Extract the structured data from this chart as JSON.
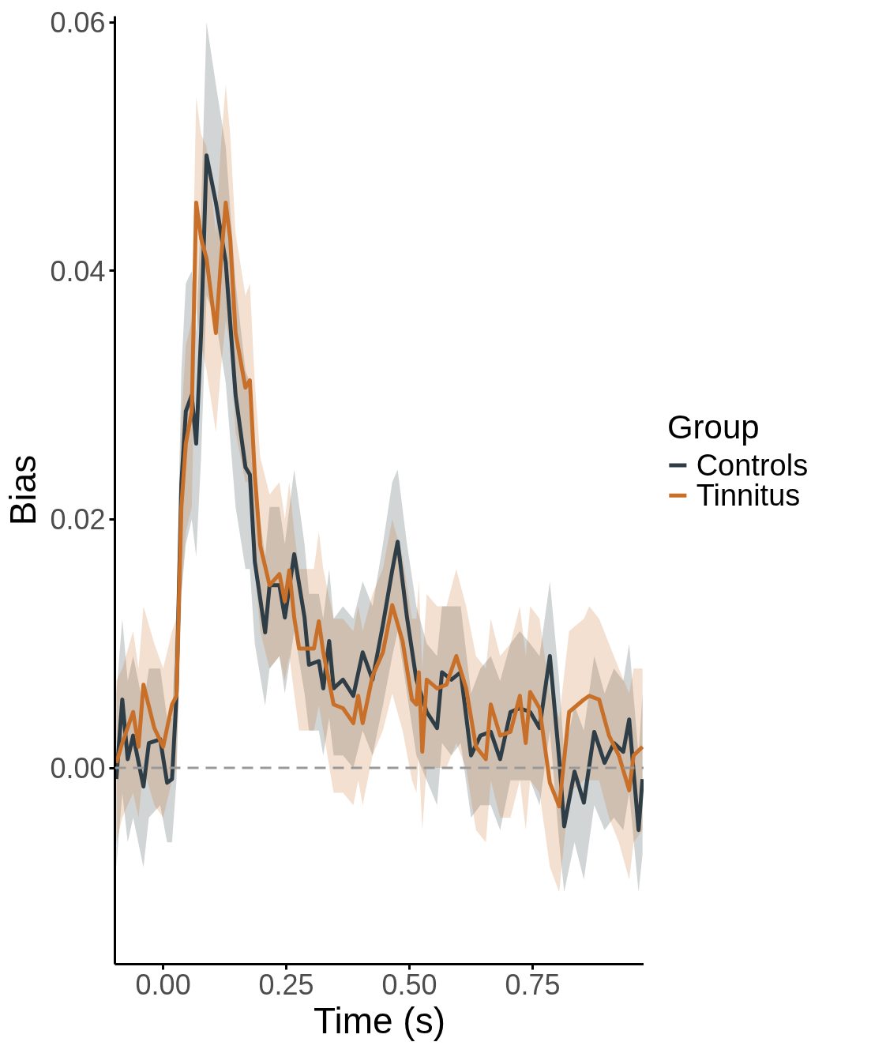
{
  "chart_data": {
    "type": "line",
    "xlabel": "Time (s)",
    "ylabel": "Bias",
    "legend_title": "Group",
    "legend": "right",
    "grid": false,
    "xlim": [
      -0.098,
      0.976
    ],
    "ylim": [
      -0.0158,
      0.0605
    ],
    "xticks": [
      {
        "value": 0,
        "label": "0.00"
      },
      {
        "value": 0.25,
        "label": "0.25"
      },
      {
        "value": 0.5,
        "label": "0.50"
      },
      {
        "value": 0.75,
        "label": "0.75"
      }
    ],
    "yticks": [
      {
        "value": 0,
        "label": "0.00"
      },
      {
        "value": 0.02,
        "label": "0.02"
      },
      {
        "value": 0.04,
        "label": "0.04"
      },
      {
        "value": 0.06,
        "label": "0.06"
      }
    ],
    "ref_lines": [
      {
        "axis": "y",
        "value": 0,
        "color": "#999999",
        "line_style": "dashed"
      }
    ],
    "series": [
      {
        "name": "Controls",
        "color": "#2f3e46",
        "x": [
          -0.095,
          -0.083,
          -0.072,
          -0.061,
          -0.04,
          -0.029,
          -0.006,
          0.008,
          0.018,
          0.027,
          0.037,
          0.046,
          0.058,
          0.067,
          0.077,
          0.088,
          0.107,
          0.127,
          0.147,
          0.167,
          0.176,
          0.186,
          0.207,
          0.216,
          0.236,
          0.247,
          0.266,
          0.287,
          0.296,
          0.316,
          0.325,
          0.337,
          0.346,
          0.365,
          0.386,
          0.405,
          0.425,
          0.446,
          0.465,
          0.476,
          0.495,
          0.514,
          0.535,
          0.556,
          0.566,
          0.585,
          0.604,
          0.625,
          0.644,
          0.665,
          0.684,
          0.705,
          0.724,
          0.745,
          0.764,
          0.785,
          0.804,
          0.814,
          0.835,
          0.854,
          0.875,
          0.896,
          0.915,
          0.934,
          0.946,
          0.965,
          0.973
        ],
        "values": [
          -0.0009,
          0.0055,
          0.0007,
          0.0026,
          -0.0015,
          0.002,
          0.0023,
          -0.0012,
          -0.0009,
          0.0058,
          0.0229,
          0.0287,
          0.03,
          0.0261,
          0.035,
          0.0493,
          0.0455,
          0.0407,
          0.03,
          0.0242,
          0.0236,
          0.0166,
          0.0109,
          0.0147,
          0.0147,
          0.0121,
          0.0172,
          0.0121,
          0.0083,
          0.0086,
          0.0064,
          0.0102,
          0.0064,
          0.0071,
          0.0058,
          0.0093,
          0.0071,
          0.0115,
          0.0159,
          0.0182,
          0.0121,
          0.0071,
          0.0045,
          0.0032,
          0.0077,
          0.0071,
          0.0077,
          0.001,
          0.0026,
          0.0029,
          0.0007,
          0.0045,
          0.0048,
          0.0045,
          0.0032,
          0.009,
          0.0007,
          -0.0047,
          -0.0003,
          -0.0028,
          0.0029,
          0.0004,
          0.002,
          0.0013,
          0.0039,
          -0.005,
          -0.0009
        ],
        "lower": [
          -0.008,
          -0.002,
          -0.006,
          -0.004,
          -0.008,
          -0.004,
          -0.003,
          -0.006,
          -0.006,
          -0.001,
          0.014,
          0.018,
          0.02,
          0.017,
          0.025,
          0.038,
          0.036,
          0.031,
          0.021,
          0.016,
          0.016,
          0.01,
          0.005,
          0.008,
          0.009,
          0.006,
          0.011,
          0.006,
          0.003,
          0.003,
          0.001,
          0.004,
          0.001,
          0.001,
          0.0,
          0.003,
          0.001,
          0.005,
          0.009,
          0.011,
          0.006,
          0.001,
          -0.001,
          -0.003,
          0.002,
          0.001,
          0.002,
          -0.004,
          -0.003,
          -0.003,
          -0.005,
          -0.001,
          -0.001,
          -0.001,
          -0.003,
          0.003,
          -0.006,
          -0.01,
          -0.006,
          -0.009,
          -0.003,
          -0.005,
          -0.004,
          -0.005,
          -0.002,
          -0.01,
          -0.007
        ],
        "upper": [
          0.006,
          0.012,
          0.007,
          0.009,
          0.005,
          0.008,
          0.008,
          0.004,
          0.004,
          0.013,
          0.032,
          0.039,
          0.04,
          0.035,
          0.045,
          0.06,
          0.055,
          0.05,
          0.039,
          0.032,
          0.031,
          0.023,
          0.017,
          0.021,
          0.021,
          0.018,
          0.024,
          0.018,
          0.014,
          0.014,
          0.012,
          0.016,
          0.012,
          0.013,
          0.012,
          0.015,
          0.013,
          0.018,
          0.023,
          0.024,
          0.018,
          0.013,
          0.01,
          0.009,
          0.013,
          0.013,
          0.013,
          0.006,
          0.008,
          0.009,
          0.007,
          0.01,
          0.011,
          0.01,
          0.009,
          0.015,
          0.007,
          0.001,
          0.005,
          0.003,
          0.009,
          0.006,
          0.008,
          0.007,
          0.01,
          0.001,
          0.006
        ]
      },
      {
        "name": "Tinnitus",
        "color": "#c8702a",
        "x": [
          -0.095,
          -0.083,
          -0.061,
          -0.05,
          -0.04,
          -0.018,
          0,
          0.018,
          0.027,
          0.037,
          0.046,
          0.058,
          0.067,
          0.077,
          0.088,
          0.107,
          0.117,
          0.127,
          0.136,
          0.147,
          0.167,
          0.176,
          0.186,
          0.197,
          0.216,
          0.236,
          0.247,
          0.256,
          0.266,
          0.276,
          0.306,
          0.316,
          0.325,
          0.346,
          0.365,
          0.386,
          0.396,
          0.405,
          0.425,
          0.446,
          0.465,
          0.486,
          0.505,
          0.514,
          0.519,
          0.526,
          0.535,
          0.556,
          0.575,
          0.595,
          0.615,
          0.635,
          0.655,
          0.665,
          0.684,
          0.705,
          0.724,
          0.736,
          0.745,
          0.764,
          0.785,
          0.804,
          0.824,
          0.854,
          0.865,
          0.885,
          0.905,
          0.925,
          0.946,
          0.955,
          0.973
        ],
        "values": [
          0.0004,
          0.002,
          0.0045,
          0.0017,
          0.0067,
          0.0032,
          0.0017,
          0.0051,
          0.0058,
          0.021,
          0.0261,
          0.0287,
          0.0455,
          0.0426,
          0.041,
          0.035,
          0.0407,
          0.0455,
          0.0426,
          0.035,
          0.0306,
          0.0312,
          0.0236,
          0.0179,
          0.0147,
          0.0156,
          0.0134,
          0.0159,
          0.0121,
          0.0096,
          0.0096,
          0.0118,
          0.0093,
          0.0051,
          0.0048,
          0.0036,
          0.0058,
          0.0036,
          0.0074,
          0.0093,
          0.0131,
          0.0102,
          0.0055,
          0.0051,
          0.0077,
          0.0013,
          0.0071,
          0.0064,
          0.0067,
          0.009,
          0.0064,
          0.0017,
          0.0007,
          0.0051,
          0.0026,
          0.0029,
          0.0058,
          0.002,
          0.0061,
          0.0048,
          -0.0012,
          -0.0031,
          0.0045,
          0.0055,
          0.0058,
          0.0055,
          0.0026,
          0.001,
          -0.0018,
          0.001,
          0.0017
        ],
        "lower": [
          -0.006,
          -0.004,
          -0.002,
          -0.004,
          0.0,
          -0.003,
          -0.004,
          -0.001,
          0.0,
          0.014,
          0.019,
          0.021,
          0.037,
          0.034,
          0.032,
          0.027,
          0.032,
          0.036,
          0.034,
          0.027,
          0.023,
          0.023,
          0.016,
          0.011,
          0.008,
          0.009,
          0.007,
          0.009,
          0.006,
          0.003,
          0.003,
          0.005,
          0.003,
          -0.002,
          -0.002,
          -0.003,
          -0.001,
          -0.003,
          0.001,
          0.003,
          0.006,
          0.003,
          -0.001,
          -0.002,
          0.001,
          -0.005,
          0.0,
          0.0,
          0.0,
          0.002,
          0.0,
          -0.005,
          -0.006,
          -0.001,
          -0.004,
          -0.004,
          -0.001,
          -0.005,
          -0.001,
          -0.002,
          -0.008,
          -0.01,
          -0.002,
          -0.001,
          -0.001,
          -0.001,
          -0.004,
          -0.006,
          -0.009,
          -0.006,
          -0.005
        ],
        "upper": [
          0.007,
          0.008,
          0.011,
          0.008,
          0.013,
          0.01,
          0.008,
          0.011,
          0.012,
          0.028,
          0.034,
          0.036,
          0.054,
          0.051,
          0.05,
          0.043,
          0.05,
          0.055,
          0.051,
          0.043,
          0.038,
          0.039,
          0.031,
          0.025,
          0.022,
          0.023,
          0.02,
          0.023,
          0.019,
          0.016,
          0.016,
          0.019,
          0.016,
          0.012,
          0.012,
          0.011,
          0.013,
          0.011,
          0.014,
          0.016,
          0.02,
          0.017,
          0.012,
          0.012,
          0.015,
          0.008,
          0.014,
          0.013,
          0.013,
          0.016,
          0.013,
          0.009,
          0.008,
          0.012,
          0.009,
          0.01,
          0.013,
          0.009,
          0.013,
          0.012,
          0.006,
          0.004,
          0.011,
          0.012,
          0.013,
          0.012,
          0.01,
          0.008,
          0.006,
          0.008,
          0.008
        ]
      }
    ]
  }
}
